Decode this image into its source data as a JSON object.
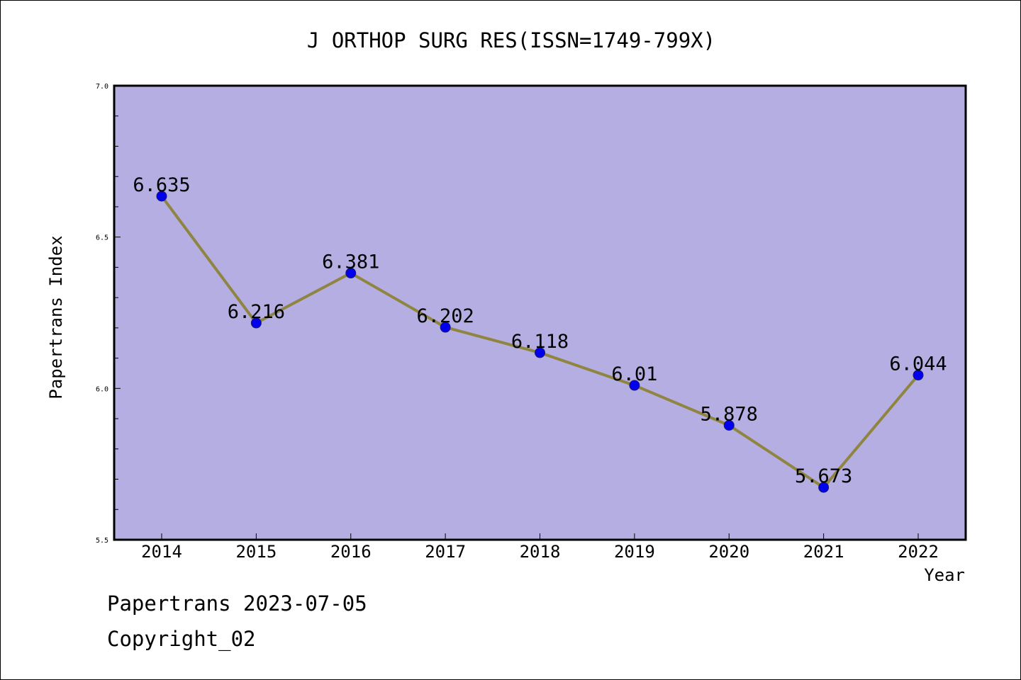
{
  "chart_data": {
    "type": "line",
    "title": "J ORTHOP SURG RES(ISSN=1749-799X)",
    "xlabel": "Year",
    "ylabel": "Papertrans Index",
    "categories": [
      "2014",
      "2015",
      "2016",
      "2017",
      "2018",
      "2019",
      "2020",
      "2021",
      "2022"
    ],
    "series": [
      {
        "values": [
          6.635,
          6.216,
          6.381,
          6.202,
          6.118,
          6.01,
          5.878,
          5.673,
          6.044
        ],
        "labels": [
          "6.635",
          "6.216",
          "6.381",
          "6.202",
          "6.118",
          "6.01",
          "5.878",
          "5.673",
          "6.044"
        ]
      }
    ],
    "ylim": [
      5.5,
      7.0
    ],
    "yticks": [
      "5.5",
      "6.0",
      "6.5",
      "7.0"
    ],
    "grid": false,
    "colors": {
      "plot_background": "#b5aee2",
      "line": "#8f8540",
      "marker": "#0000ee"
    }
  },
  "footer": {
    "line1": "Papertrans 2023-07-05",
    "line2": "Copyright_02"
  }
}
